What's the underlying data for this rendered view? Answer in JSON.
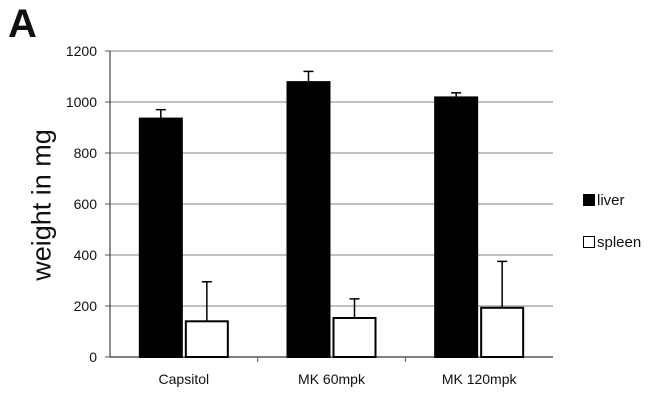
{
  "panel_label": "A",
  "chart_data": {
    "type": "bar",
    "title": "",
    "xlabel": "",
    "ylabel": "weight in mg",
    "ylim": [
      0,
      1200
    ],
    "yticks": [
      0,
      200,
      400,
      600,
      800,
      1000,
      1200
    ],
    "grid": true,
    "legend_position": "right",
    "categories": [
      "Capsitol",
      "MK 60mpk",
      "MK 120mpk"
    ],
    "series": [
      {
        "name": "liver",
        "color": "#000000",
        "fill": "#000000",
        "values": [
          935,
          1078,
          1018
        ],
        "errors": [
          35,
          42,
          18
        ]
      },
      {
        "name": "spleen",
        "color": "#000000",
        "fill": "#ffffff",
        "values": [
          140,
          153,
          193
        ],
        "errors": [
          155,
          75,
          182
        ]
      }
    ]
  }
}
